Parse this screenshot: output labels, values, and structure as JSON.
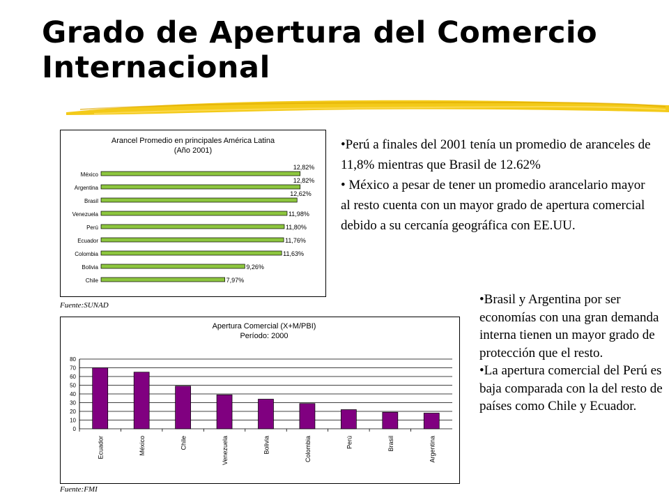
{
  "slide": {
    "title": "Grado de Apertura del Comercio Internacional",
    "accent_color": "#f2c400"
  },
  "chart_data": [
    {
      "type": "bar",
      "orientation": "horizontal",
      "title": "Arancel Promedio en principales América Latina",
      "subtitle": "(Año 2001)",
      "categories": [
        "México",
        "Argentina",
        "Brasil",
        "Venezuela",
        "Perú",
        "Ecuador",
        "Colombia",
        "Bolivia",
        "Chile"
      ],
      "values": [
        12.82,
        12.82,
        12.62,
        11.98,
        11.8,
        11.76,
        11.63,
        9.26,
        7.97
      ],
      "data_labels": [
        "12,82%",
        "12,82%",
        "12,62%",
        "11,98%",
        "11,80%",
        "11,76%",
        "11,63%",
        "9,26%",
        "7,97%"
      ],
      "xlim": [
        0,
        14
      ],
      "bar_color": "#8dc63f",
      "source": "Fuente:SUNAD"
    },
    {
      "type": "bar",
      "title": "Apertura Comercial (X+M/PBI)",
      "subtitle": "Período: 2000",
      "categories": [
        "Ecuador",
        "México",
        "Chile",
        "Venezuela",
        "Bolivia",
        "Colombia",
        "Perú",
        "Brasil",
        "Argentina"
      ],
      "values": [
        70,
        65,
        49,
        39,
        34,
        29,
        22,
        19,
        18
      ],
      "ylim": [
        0,
        80
      ],
      "yticks": [
        0,
        10,
        20,
        30,
        40,
        50,
        60,
        70,
        80
      ],
      "grid": true,
      "bar_color": "#800080",
      "source": "Fuente:FMI"
    }
  ],
  "text_top": [
    "•Perú a finales del 2001 tenía un promedio de aranceles de 11,8% mientras que Brasil de 12.62%",
    "• México a pesar de tener un promedio arancelario mayor al resto cuenta con un mayor grado de apertura comercial debido a su cercanía geográfica con EE.UU."
  ],
  "text_bottom": [
    "•Brasil y Argentina por ser economías con una gran demanda interna tienen un mayor grado de protección que el resto.",
    "•La apertura comercial del Perú es baja comparada con la del resto de países como Chile y Ecuador."
  ]
}
